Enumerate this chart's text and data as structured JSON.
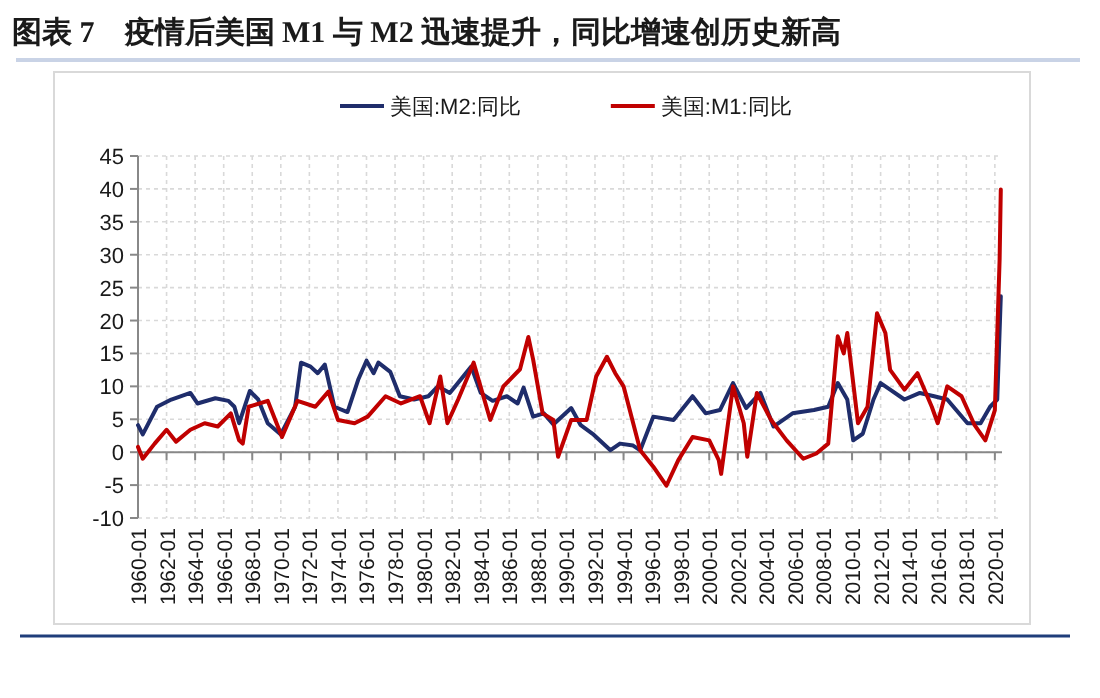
{
  "chart_data": {
    "type": "line",
    "title": "图表 7　疫情后美国 M1 与 M2 迅速提升，同比增速创历史新高",
    "legend": "top",
    "grid": true,
    "marker": "none",
    "line_style": "solid",
    "xlim": [
      "1960-01",
      "2020-07"
    ],
    "xticks": [
      "1960-01",
      "1962-01",
      "1964-01",
      "1966-01",
      "1968-01",
      "1970-01",
      "1972-01",
      "1974-01",
      "1976-01",
      "1978-01",
      "1980-01",
      "1982-01",
      "1984-01",
      "1986-01",
      "1988-01",
      "1990-01",
      "1992-01",
      "1994-01",
      "1996-01",
      "1998-01",
      "2000-01",
      "2002-01",
      "2004-01",
      "2006-01",
      "2008-01",
      "2010-01",
      "2012-01",
      "2014-01",
      "2016-01",
      "2018-01",
      "2020-01"
    ],
    "ylim": [
      -10,
      45
    ],
    "yticks": [
      -10,
      -5,
      0,
      5,
      10,
      15,
      20,
      25,
      30,
      35,
      40,
      45
    ],
    "series": [
      {
        "name": "美国:M2:同比",
        "color": "#1f2d6b",
        "x": [
          "1960-01",
          "1960-05",
          "1961-05",
          "1962-05",
          "1963-09",
          "1964-03",
          "1965-06",
          "1966-05",
          "1966-10",
          "1967-02",
          "1967-11",
          "1968-06",
          "1969-02",
          "1970-01",
          "1971-01",
          "1971-06",
          "1972-02",
          "1972-08",
          "1973-02",
          "1973-10",
          "1974-09",
          "1975-06",
          "1976-01",
          "1976-07",
          "1976-11",
          "1977-09",
          "1978-05",
          "1979-05",
          "1980-05",
          "1981-01",
          "1981-11",
          "1983-05",
          "1984-01",
          "1984-11",
          "1985-11",
          "1986-08",
          "1987-01",
          "1987-09",
          "1988-06",
          "1989-02",
          "1990-05",
          "1991-01",
          "1991-11",
          "1993-02",
          "1993-10",
          "1994-09",
          "1995-03",
          "1996-02",
          "1997-07",
          "1998-11",
          "1999-10",
          "2000-10",
          "2001-09",
          "2002-08",
          "2003-08",
          "2004-07",
          "2005-11",
          "2007-05",
          "2008-05",
          "2009-01",
          "2009-09",
          "2010-02",
          "2010-10",
          "2011-07",
          "2012-01",
          "2012-09",
          "2013-09",
          "2014-10",
          "2015-10",
          "2016-09",
          "2018-02",
          "2019-01",
          "2019-09",
          "2020-03",
          "2020-06"
        ],
        "values": [
          4.1,
          2.7,
          6.9,
          8,
          9,
          7.4,
          8.2,
          7.8,
          6.9,
          4.4,
          9.3,
          8,
          4.4,
          2.7,
          6.9,
          13.6,
          13,
          12,
          13.3,
          6.9,
          6.1,
          11,
          13.9,
          12,
          13.6,
          12.2,
          8.5,
          8,
          8.5,
          10,
          9,
          13,
          9,
          7.8,
          8.5,
          7.4,
          9.8,
          5.4,
          5.9,
          4.2,
          6.7,
          4.1,
          2.8,
          0.3,
          1.3,
          1,
          0.3,
          5.4,
          4.9,
          8.5,
          5.9,
          6.4,
          10.5,
          6.7,
          9,
          3.9,
          5.9,
          6.4,
          6.9,
          10.5,
          8,
          1.8,
          2.8,
          8,
          10.5,
          9.5,
          8,
          9,
          8.5,
          8,
          4.4,
          4.4,
          6.9,
          8,
          23.7
        ]
      },
      {
        "name": "美国:M1:同比",
        "color": "#c00000",
        "x": [
          "1960-01",
          "1960-05",
          "1961-03",
          "1962-01",
          "1962-09",
          "1963-09",
          "1964-09",
          "1965-08",
          "1966-07",
          "1967-02",
          "1967-05",
          "1967-10",
          "1969-02",
          "1970-02",
          "1971-03",
          "1972-06",
          "1973-05",
          "1974-01",
          "1975-03",
          "1976-02",
          "1977-05",
          "1978-06",
          "1979-10",
          "1980-06",
          "1981-03",
          "1981-09",
          "1982-06",
          "1983-07",
          "1984-09",
          "1985-08",
          "1986-10",
          "1987-05",
          "1987-09",
          "1988-05",
          "1989-02",
          "1989-06",
          "1990-05",
          "1991-06",
          "1992-02",
          "1992-11",
          "1993-06",
          "1994-01",
          "1995-03",
          "1996-02",
          "1997-01",
          "1997-11",
          "1998-11",
          "2000-01",
          "2000-09",
          "2000-11",
          "2001-09",
          "2002-06",
          "2002-09",
          "2003-05",
          "2004-05",
          "2005-06",
          "2006-08",
          "2007-07",
          "2008-05",
          "2009-01",
          "2009-06",
          "2009-09",
          "2010-06",
          "2011-02",
          "2011-10",
          "2012-05",
          "2012-09",
          "2013-09",
          "2014-08",
          "2015-08",
          "2016-01",
          "2016-09",
          "2017-09",
          "2018-08",
          "2019-05",
          "2020-01",
          "2020-05",
          "2020-06"
        ],
        "values": [
          0.8,
          -1,
          1.3,
          3.4,
          1.6,
          3.4,
          4.4,
          3.9,
          5.9,
          1.8,
          1.3,
          6.9,
          7.8,
          2.3,
          7.8,
          6.9,
          9.2,
          4.9,
          4.4,
          5.4,
          8.5,
          7.4,
          8.5,
          4.4,
          11.5,
          4.4,
          8,
          13.6,
          4.9,
          10,
          12.6,
          17.5,
          14.1,
          5.9,
          4.9,
          -0.7,
          4.9,
          4.9,
          11.5,
          14.5,
          12,
          10,
          0.3,
          -2.2,
          -5.1,
          -1.2,
          2.3,
          1.8,
          -1.2,
          -3.3,
          10,
          4.4,
          -0.7,
          9,
          4.9,
          1.8,
          -1,
          -0.2,
          1.3,
          17.6,
          15,
          18.1,
          4.4,
          6.9,
          21.1,
          18.1,
          12.5,
          9.5,
          12,
          6.9,
          4.4,
          10,
          8.5,
          4.1,
          1.8,
          6.4,
          29.3,
          39.9
        ]
      }
    ]
  }
}
